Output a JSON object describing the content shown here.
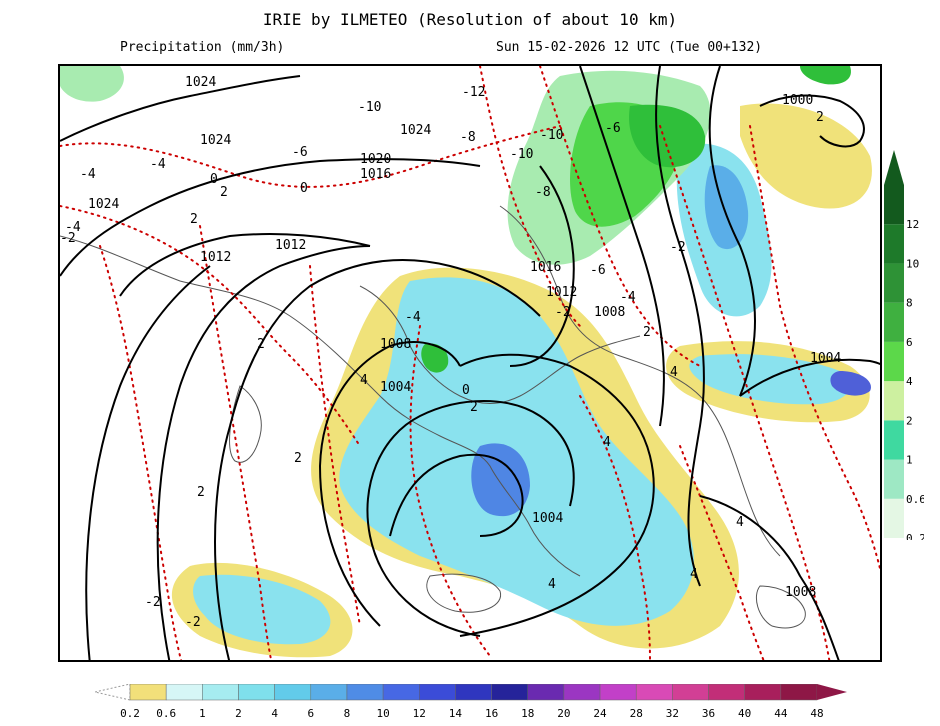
{
  "header": {
    "title": "IRIE by ILMETEO (Resolution of about 10 km)",
    "variable": "Precipitation (mm/3h)",
    "valid_time": "Sun 15-02-2026 12 UTC (Tue 00+132)"
  },
  "map": {
    "isobar_labels": [
      "1024",
      "1024",
      "1024",
      "1024",
      "1020",
      "1016",
      "1016",
      "1012",
      "1012",
      "1012",
      "1008",
      "1008",
      "1008",
      "1004",
      "1004",
      "1004",
      "1000"
    ],
    "temp_labels": [
      "-12",
      "-10",
      "-10",
      "-10",
      "-8",
      "-8",
      "-6",
      "-6",
      "-6",
      "-4",
      "-4",
      "-4",
      "-4",
      "-4",
      "-2",
      "-2",
      "-2",
      "-2",
      "-2",
      "0",
      "0",
      "0",
      "2",
      "2",
      "2",
      "2",
      "2",
      "2",
      "2",
      "2",
      "4",
      "4",
      "4",
      "4",
      "4",
      "4"
    ]
  },
  "legend_vertical": {
    "values": [
      "0.2",
      "0.6",
      "1",
      "2",
      "4",
      "6",
      "8",
      "10",
      "12"
    ],
    "colors": [
      "#e4f7e4",
      "#9ee8c4",
      "#3fd9a0",
      "#cdf0a0",
      "#5cd84a",
      "#3fb040",
      "#2e9236",
      "#1e7a2a",
      "#135a1e"
    ]
  },
  "legend_horizontal": {
    "values": [
      "0.2",
      "0.6",
      "1",
      "2",
      "4",
      "6",
      "8",
      "10",
      "12",
      "14",
      "16",
      "18",
      "20",
      "24",
      "28",
      "32",
      "36",
      "40",
      "44",
      "48"
    ],
    "colors": [
      "#f2e07a",
      "#d6f6f6",
      "#a6ecf0",
      "#7fe0ec",
      "#62cbea",
      "#5aaee8",
      "#4f8ce6",
      "#4768e4",
      "#3b4cd8",
      "#2f36bf",
      "#25239a",
      "#6a2ab0",
      "#9b36c2",
      "#c240c8",
      "#d94ab6",
      "#d23f95",
      "#c22e78",
      "#a81f5c",
      "#8e1746"
    ]
  },
  "colors": {
    "isobar": "#000000",
    "isotherm": "#cc0000",
    "coast": "#555555"
  }
}
